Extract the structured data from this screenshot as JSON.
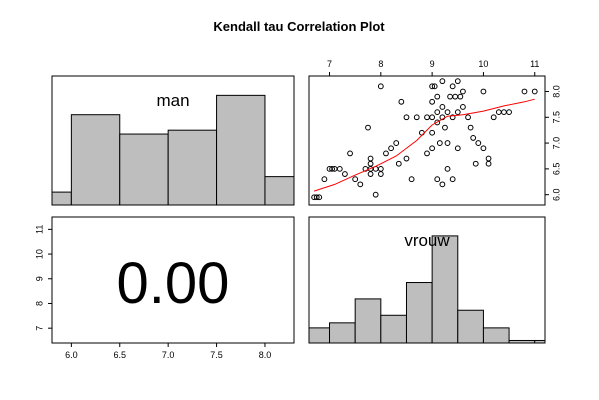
{
  "chart_data": {
    "type": "scatter-matrix",
    "title": "Kendall tau Correlation Plot",
    "variables": [
      "man",
      "vrouw"
    ],
    "correlation_text": "0.00",
    "man_axis": {
      "range": [
        5.8,
        8.3
      ],
      "ticks": [
        "6.0",
        "6.5",
        "7.0",
        "7.5",
        "8.0"
      ]
    },
    "vrouw_axis": {
      "range": [
        5.8,
        8.3
      ],
      "ticks": [
        "6.0",
        "6.5",
        "7.0",
        "7.5",
        "8.0"
      ]
    },
    "lower_left_axis": {
      "range": [
        6.4,
        11.5
      ],
      "ticks": [
        "7",
        "8",
        "9",
        "10",
        "11"
      ]
    },
    "upper_right_axis": {
      "range": [
        6.6,
        11.2
      ],
      "ticks": [
        "7",
        "8",
        "9",
        "10",
        "11"
      ]
    },
    "hist_man": {
      "edges": [
        5.8,
        6.0,
        6.5,
        7.0,
        7.5,
        8.0,
        8.3
      ],
      "heights": [
        0.1,
        0.7,
        0.55,
        0.58,
        0.85,
        0.22
      ]
    },
    "hist_vrouw": {
      "edges": [
        6.6,
        7.0,
        7.5,
        8.0,
        8.5,
        9.0,
        9.5,
        10.0,
        10.5,
        11.0,
        11.2
      ],
      "heights": [
        0.12,
        0.16,
        0.35,
        0.22,
        0.48,
        0.85,
        0.26,
        0.12,
        0.02,
        0.02
      ]
    },
    "scatter": {
      "x": [
        6.7,
        6.8,
        6.9,
        7.0,
        7.1,
        7.2,
        7.3,
        7.4,
        7.5,
        7.6,
        7.7,
        7.8,
        7.8,
        7.8,
        7.9,
        7.9,
        8.0,
        8.0,
        8.1,
        8.2,
        8.3,
        8.4,
        8.5,
        8.6,
        8.7,
        8.8,
        8.9,
        9.0,
        9.0,
        9.0,
        9.0,
        9.0,
        9.1,
        9.1,
        9.1,
        9.2,
        9.2,
        9.2,
        9.2,
        9.3,
        9.3,
        9.3,
        9.4,
        9.4,
        9.4,
        9.5,
        9.5,
        9.5,
        9.6,
        9.6,
        9.7,
        9.8,
        9.9,
        10.0,
        10.0,
        10.1,
        10.2,
        10.3,
        10.4,
        10.5,
        10.8,
        11.0,
        6.75,
        7.05,
        7.75,
        7.8,
        8.35,
        8.9,
        9.05,
        9.15,
        9.35,
        9.45,
        9.55,
        9.75,
        9.85,
        10.1,
        8.0,
        8.5,
        9.1,
        9.25
      ],
      "y": [
        5.95,
        5.95,
        6.3,
        6.5,
        6.5,
        6.5,
        6.4,
        6.8,
        6.3,
        6.2,
        6.5,
        6.4,
        6.5,
        6.7,
        6.0,
        6.5,
        6.5,
        6.4,
        6.8,
        6.9,
        7.0,
        7.8,
        6.7,
        6.3,
        7.5,
        7.2,
        6.8,
        6.9,
        7.2,
        7.5,
        7.8,
        8.1,
        6.3,
        7.6,
        7.9,
        6.2,
        7.5,
        7.7,
        8.2,
        6.5,
        7.0,
        7.6,
        6.3,
        7.5,
        8.1,
        6.9,
        7.6,
        8.2,
        7.7,
        8.0,
        7.5,
        7.1,
        7.0,
        6.9,
        8.0,
        6.7,
        7.5,
        7.6,
        7.6,
        7.6,
        8.0,
        8.0,
        5.95,
        6.5,
        7.3,
        6.6,
        6.6,
        7.5,
        8.1,
        7.0,
        7.9,
        7.9,
        7.9,
        7.3,
        6.6,
        6.6,
        8.1,
        7.5,
        7.4,
        7.3
      ],
      "smooth_x": [
        6.7,
        7.1,
        7.5,
        7.9,
        8.3,
        8.7,
        9.0,
        9.3,
        9.6,
        10.0,
        10.4,
        10.8,
        11.0
      ],
      "smooth_y": [
        6.07,
        6.2,
        6.38,
        6.55,
        6.75,
        7.05,
        7.35,
        7.52,
        7.55,
        7.62,
        7.72,
        7.8,
        7.85
      ]
    }
  }
}
